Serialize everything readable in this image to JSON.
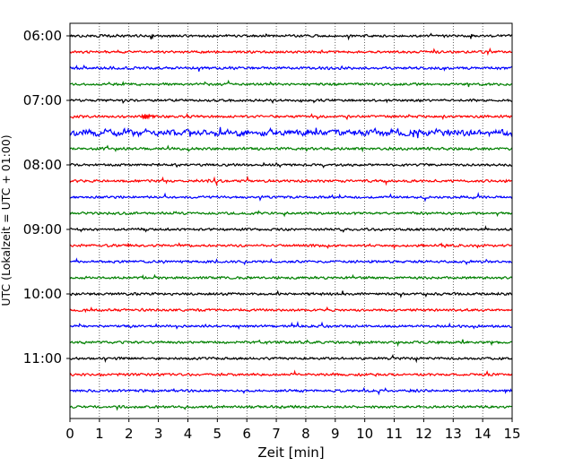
{
  "chart_data": {
    "type": "line",
    "title": "",
    "xlabel": "Zeit  [min]",
    "ylabel": "UTC (Lokalzeit = UTC + 01:00)",
    "xlim": [
      0,
      15
    ],
    "x_ticks": [
      "0",
      "1",
      "2",
      "3",
      "4",
      "5",
      "6",
      "7",
      "8",
      "9",
      "10",
      "11",
      "12",
      "13",
      "14",
      "15"
    ],
    "y_ticks": [
      "06:00",
      "07:00",
      "08:00",
      "09:00",
      "10:00",
      "11:00"
    ],
    "grid": "vertical dotted at each minute",
    "trace_interval_min": 15,
    "start_time": "06:00",
    "colors": [
      "#000000",
      "#ff0000",
      "#0000ff",
      "#008000"
    ],
    "series": [
      {
        "start": "06:00",
        "color": "#000000",
        "amplitude": 1.0
      },
      {
        "start": "06:15",
        "color": "#ff0000",
        "amplitude": 1.0
      },
      {
        "start": "06:30",
        "color": "#0000ff",
        "amplitude": 1.1
      },
      {
        "start": "06:45",
        "color": "#008000",
        "amplitude": 1.0
      },
      {
        "start": "07:00",
        "color": "#000000",
        "amplitude": 1.0
      },
      {
        "start": "07:15",
        "color": "#ff0000",
        "amplitude": 1.0,
        "event_at_min": 2.4
      },
      {
        "start": "07:30",
        "color": "#0000ff",
        "amplitude": 2.2
      },
      {
        "start": "07:45",
        "color": "#008000",
        "amplitude": 1.1
      },
      {
        "start": "08:00",
        "color": "#000000",
        "amplitude": 1.0
      },
      {
        "start": "08:15",
        "color": "#ff0000",
        "amplitude": 1.0
      },
      {
        "start": "08:30",
        "color": "#0000ff",
        "amplitude": 1.0
      },
      {
        "start": "08:45",
        "color": "#008000",
        "amplitude": 1.0
      },
      {
        "start": "09:00",
        "color": "#000000",
        "amplitude": 1.0
      },
      {
        "start": "09:15",
        "color": "#ff0000",
        "amplitude": 1.0
      },
      {
        "start": "09:30",
        "color": "#0000ff",
        "amplitude": 1.0
      },
      {
        "start": "09:45",
        "color": "#008000",
        "amplitude": 1.0
      },
      {
        "start": "10:00",
        "color": "#000000",
        "amplitude": 1.0
      },
      {
        "start": "10:15",
        "color": "#ff0000",
        "amplitude": 1.0
      },
      {
        "start": "10:30",
        "color": "#0000ff",
        "amplitude": 1.0
      },
      {
        "start": "10:45",
        "color": "#008000",
        "amplitude": 1.0
      },
      {
        "start": "11:00",
        "color": "#000000",
        "amplitude": 1.0
      },
      {
        "start": "11:15",
        "color": "#ff0000",
        "amplitude": 1.0
      },
      {
        "start": "11:30",
        "color": "#0000ff",
        "amplitude": 1.0
      },
      {
        "start": "11:45",
        "color": "#008000",
        "amplitude": 1.0
      }
    ]
  }
}
